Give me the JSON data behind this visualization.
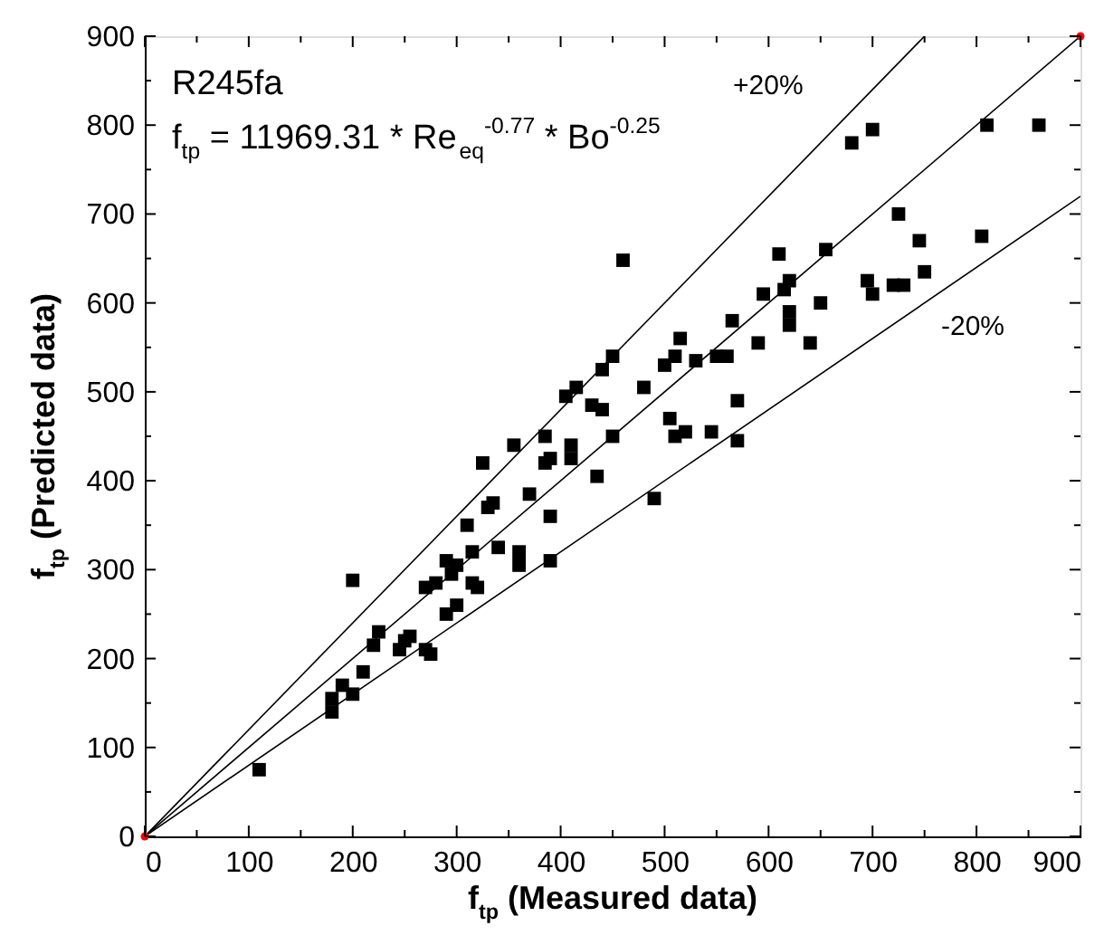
{
  "chart_data": {
    "type": "scatter",
    "xlabel": "f$_{tp}$ (Measured data)",
    "ylabel": "f$_{tp}$ (Predicted data)",
    "xlim": [
      0,
      900
    ],
    "ylim": [
      0,
      900
    ],
    "xticks": [
      0,
      {
        "value": 50,
        "label": null
      },
      100,
      {
        "value": 150,
        "label": null
      },
      200,
      {
        "value": 250,
        "label": null
      },
      300,
      {
        "value": 350,
        "label": null
      },
      400,
      {
        "value": 450,
        "label": null
      },
      500,
      {
        "value": 550,
        "label": null
      },
      600,
      {
        "value": 650,
        "label": null
      },
      700,
      {
        "value": 750,
        "label": null
      },
      800,
      {
        "value": 850,
        "label": null
      },
      900
    ],
    "yticks": [
      0,
      {
        "value": 50,
        "label": null
      },
      100,
      {
        "value": 150,
        "label": null
      },
      200,
      {
        "value": 250,
        "label": null
      },
      300,
      {
        "value": 350,
        "label": null
      },
      400,
      {
        "value": 450,
        "label": null
      },
      500,
      {
        "value": 550,
        "label": null
      },
      600,
      {
        "value": 650,
        "label": null
      },
      700,
      {
        "value": 750,
        "label": null
      },
      800,
      {
        "value": 850,
        "label": null
      },
      900
    ],
    "grid": false,
    "series": [
      {
        "color": "#000000",
        "marker": "square",
        "x": [
          110,
          180,
          180,
          190,
          200,
          200,
          210,
          220,
          225,
          245,
          250,
          255,
          270,
          275,
          270,
          280,
          290,
          290,
          295,
          300,
          300,
          310,
          315,
          315,
          320,
          325,
          330,
          335,
          340,
          355,
          360,
          360,
          370,
          385,
          385,
          390,
          390,
          390,
          405,
          410,
          410,
          415,
          430,
          435,
          440,
          440,
          450,
          450,
          460,
          480,
          490,
          500,
          505,
          510,
          510,
          515,
          520,
          530,
          545,
          550,
          560,
          565,
          570,
          570,
          590,
          595,
          610,
          615,
          620,
          620,
          620,
          640,
          650,
          655,
          680,
          695,
          700,
          700,
          725,
          720,
          730,
          745,
          750,
          805,
          810,
          860
        ],
        "values": [
          75,
          140,
          155,
          170,
          160,
          288,
          185,
          215,
          230,
          210,
          220,
          225,
          210,
          205,
          280,
          285,
          250,
          310,
          295,
          260,
          305,
          350,
          285,
          320,
          280,
          420,
          370,
          375,
          325,
          440,
          305,
          320,
          385,
          420,
          450,
          310,
          360,
          425,
          495,
          425,
          440,
          505,
          485,
          405,
          480,
          525,
          450,
          540,
          648,
          505,
          380,
          530,
          470,
          450,
          540,
          560,
          455,
          535,
          455,
          540,
          540,
          580,
          490,
          445,
          555,
          610,
          655,
          615,
          625,
          590,
          575,
          555,
          600,
          660,
          780,
          625,
          795,
          610,
          700,
          620,
          620,
          670,
          635,
          675,
          800,
          800
        ]
      },
      {
        "type": "line",
        "color": "#000000",
        "marker": "none",
        "line_style": "solid",
        "x": [
          0,
          900
        ],
        "values": [
          0,
          900
        ]
      },
      {
        "type": "line",
        "color": "#000000",
        "marker": "none",
        "line_style": "solid",
        "x": [
          0,
          750
        ],
        "values": [
          0,
          900
        ]
      },
      {
        "type": "line",
        "color": "#000000",
        "marker": "none",
        "line_style": "solid",
        "x": [
          0,
          900
        ],
        "values": [
          0,
          720
        ]
      },
      {
        "type": "scatter",
        "color": "#ff0000",
        "marker": "circle",
        "x": [
          0,
          900
        ],
        "values": [
          0,
          900
        ]
      }
    ],
    "annotations": [
      "R245fa",
      "f$_{tp}$ = 11969.31 * Re$_{eq}$$^{-0.77}$ * Bo$^{-0.25}$",
      "+20%",
      "-20%"
    ]
  }
}
